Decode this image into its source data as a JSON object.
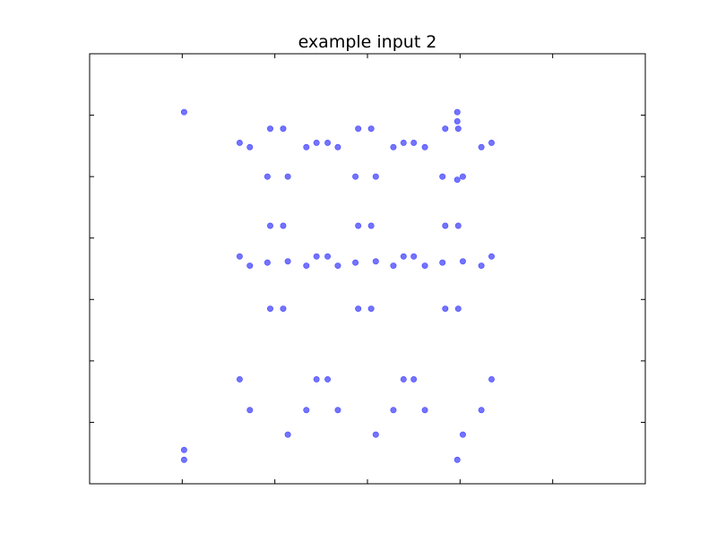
{
  "chart_data": {
    "type": "scatter",
    "title": "example input 2",
    "xlabel": "",
    "ylabel": "",
    "xlim": [
      0,
      6
    ],
    "ylim": [
      0,
      7
    ],
    "grid": false,
    "point_color": "#0000ff",
    "point_opacity": 0.55,
    "series": [
      {
        "points": [
          [
            1.02,
            6.05
          ],
          [
            3.97,
            6.05
          ],
          [
            3.97,
            5.9
          ],
          [
            3.97,
            4.95
          ],
          [
            1.02,
            0.55
          ],
          [
            1.02,
            0.39
          ],
          [
            3.97,
            0.39
          ],
          [
            1.62,
            5.55
          ],
          [
            1.73,
            5.48
          ],
          [
            1.92,
            5.0
          ],
          [
            1.95,
            5.78
          ],
          [
            2.09,
            5.78
          ],
          [
            2.14,
            5.0
          ],
          [
            2.34,
            5.48
          ],
          [
            2.45,
            5.55
          ],
          [
            2.57,
            5.55
          ],
          [
            2.68,
            5.48
          ],
          [
            2.87,
            5.0
          ],
          [
            2.9,
            5.78
          ],
          [
            3.04,
            5.78
          ],
          [
            3.09,
            5.0
          ],
          [
            3.28,
            5.48
          ],
          [
            3.39,
            5.55
          ],
          [
            3.5,
            5.55
          ],
          [
            3.62,
            5.48
          ],
          [
            3.81,
            5.0
          ],
          [
            3.84,
            5.78
          ],
          [
            3.98,
            5.78
          ],
          [
            4.03,
            5.0
          ],
          [
            4.23,
            5.48
          ],
          [
            4.34,
            5.55
          ],
          [
            1.95,
            4.2
          ],
          [
            2.09,
            4.2
          ],
          [
            2.9,
            4.2
          ],
          [
            3.04,
            4.2
          ],
          [
            3.84,
            4.2
          ],
          [
            3.98,
            4.2
          ],
          [
            1.62,
            3.7
          ],
          [
            1.73,
            3.55
          ],
          [
            1.92,
            3.6
          ],
          [
            2.14,
            3.62
          ],
          [
            2.34,
            3.55
          ],
          [
            2.45,
            3.7
          ],
          [
            2.57,
            3.7
          ],
          [
            2.68,
            3.55
          ],
          [
            2.87,
            3.6
          ],
          [
            3.09,
            3.62
          ],
          [
            3.28,
            3.55
          ],
          [
            3.39,
            3.7
          ],
          [
            3.5,
            3.7
          ],
          [
            3.62,
            3.55
          ],
          [
            3.81,
            3.6
          ],
          [
            4.03,
            3.62
          ],
          [
            4.23,
            3.55
          ],
          [
            4.34,
            3.7
          ],
          [
            1.95,
            2.85
          ],
          [
            2.09,
            2.85
          ],
          [
            2.9,
            2.85
          ],
          [
            3.04,
            2.85
          ],
          [
            3.84,
            2.85
          ],
          [
            3.98,
            2.85
          ],
          [
            1.62,
            1.7
          ],
          [
            2.45,
            1.7
          ],
          [
            2.57,
            1.7
          ],
          [
            3.39,
            1.7
          ],
          [
            3.5,
            1.7
          ],
          [
            4.34,
            1.7
          ],
          [
            1.73,
            1.2
          ],
          [
            2.34,
            1.2
          ],
          [
            2.68,
            1.2
          ],
          [
            3.28,
            1.2
          ],
          [
            3.62,
            1.2
          ],
          [
            4.23,
            1.2
          ],
          [
            2.14,
            0.8
          ],
          [
            3.09,
            0.8
          ],
          [
            4.03,
            0.8
          ]
        ]
      }
    ]
  }
}
